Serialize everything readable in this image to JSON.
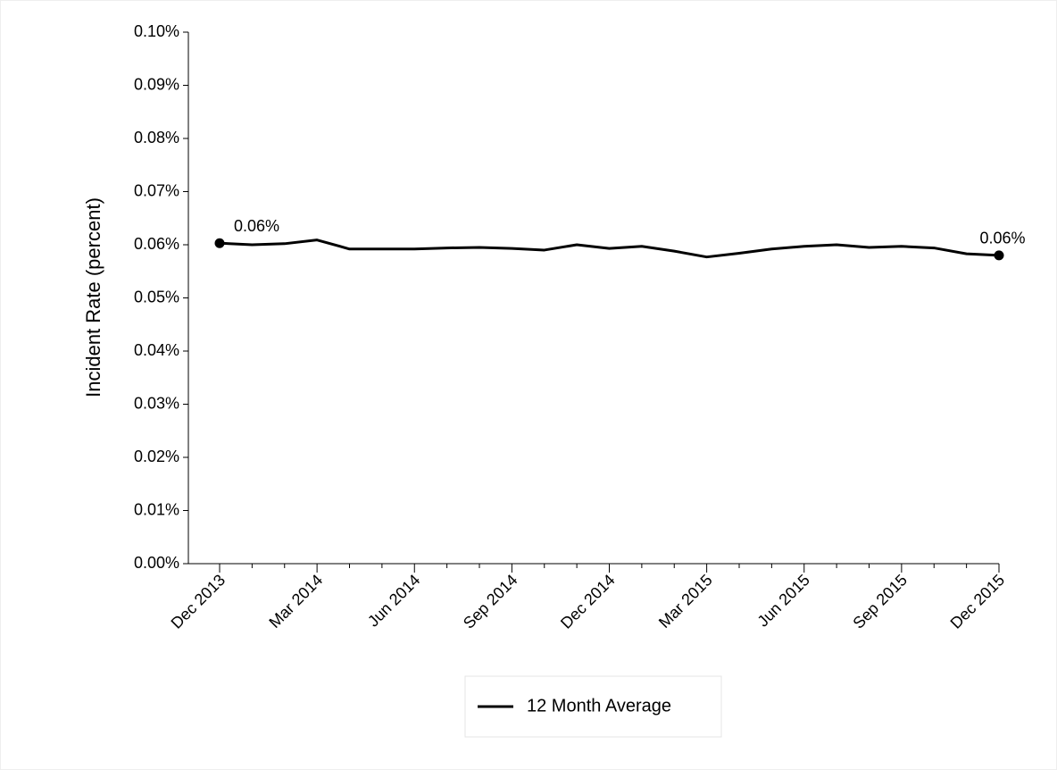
{
  "chart_data": {
    "type": "line",
    "y_label": "Incident Rate (percent)",
    "x": [
      "Dec 2013",
      null,
      null,
      "Mar 2014",
      null,
      null,
      "Jun 2014",
      null,
      null,
      "Sep 2014",
      null,
      null,
      "Dec 2014",
      null,
      null,
      "Mar 2015",
      null,
      null,
      "Jun 2015",
      null,
      null,
      "Sep 2015",
      null,
      null,
      "Dec 2015"
    ],
    "series": [
      {
        "name": "12 Month Average",
        "color": "#000000",
        "values": [
          0.0603,
          0.06,
          0.0602,
          0.0609,
          0.0592,
          0.0592,
          0.0592,
          0.0594,
          0.0595,
          0.0593,
          0.059,
          0.06,
          0.0593,
          0.0597,
          0.0588,
          0.0577,
          0.0584,
          0.0592,
          0.0597,
          0.06,
          0.0595,
          0.0597,
          0.0594,
          0.0583,
          0.058
        ],
        "value_labels": [
          "0.06%",
          null,
          null,
          null,
          null,
          null,
          null,
          null,
          null,
          null,
          null,
          null,
          null,
          null,
          null,
          null,
          null,
          null,
          null,
          null,
          null,
          null,
          null,
          null,
          "0.06%"
        ]
      }
    ],
    "ylim": [
      0,
      0.1
    ],
    "yticks": [
      {
        "value": 0,
        "label": "0.00%"
      },
      {
        "value": 0.01,
        "label": "0.01%"
      },
      {
        "value": 0.02,
        "label": "0.02%"
      },
      {
        "value": 0.03,
        "label": "0.03%"
      },
      {
        "value": 0.04,
        "label": "0.04%"
      },
      {
        "value": 0.05,
        "label": "0.05%"
      },
      {
        "value": 0.06,
        "label": "0.06%"
      },
      {
        "value": 0.07,
        "label": "0.07%"
      },
      {
        "value": 0.08,
        "label": "0.08%"
      },
      {
        "value": 0.09,
        "label": "0.09%"
      },
      {
        "value": 0.1,
        "label": "0.10%"
      }
    ],
    "grid": false,
    "legend": "bottom"
  }
}
